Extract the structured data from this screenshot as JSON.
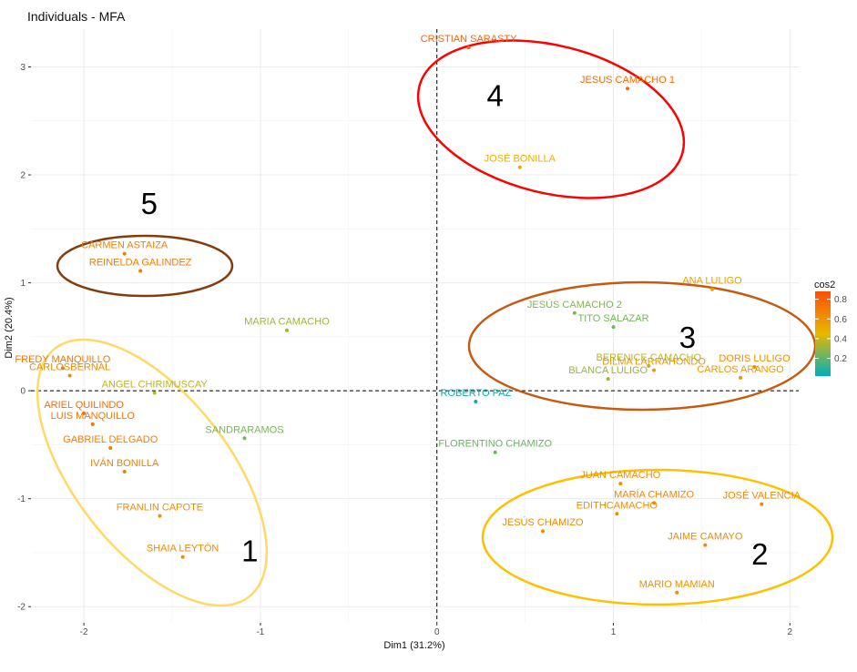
{
  "chart_data": {
    "type": "scatter",
    "title": "Individuals - MFA",
    "xlabel": "Dim1 (31.2%)",
    "ylabel": "Dim2 (20.4%)",
    "xlim": [
      -2.3,
      2.05
    ],
    "ylim": [
      -2.15,
      3.35
    ],
    "xticks": [
      -2,
      -1,
      0,
      1,
      2
    ],
    "yticks": [
      -2,
      -1,
      0,
      1,
      2,
      3
    ],
    "grid": true,
    "legend": {
      "title": "cos2",
      "position": "right",
      "ticks": [
        0.8,
        0.6,
        0.4,
        0.2
      ],
      "range": [
        0.02,
        0.88
      ]
    },
    "colors": {
      "low": "#00AFBB",
      "mid": "#E7B800",
      "high": "#FC4E07"
    },
    "points": [
      {
        "label": "CRISTIAN SARASTY",
        "x": 0.18,
        "y": 3.18,
        "cos2": 0.8
      },
      {
        "label": "JESUS CAMACHO 1",
        "x": 1.08,
        "y": 2.8,
        "cos2": 0.76
      },
      {
        "label": "JOSÉ BONILLA",
        "x": 0.47,
        "y": 2.07,
        "cos2": 0.5
      },
      {
        "label": "CARMEN ASTAIZA",
        "x": -1.77,
        "y": 1.27,
        "cos2": 0.68
      },
      {
        "label": "REINELDA GALINDEZ",
        "x": -1.68,
        "y": 1.11,
        "cos2": 0.7
      },
      {
        "label": "MARIA CAMACHO",
        "x": -0.85,
        "y": 0.56,
        "cos2": 0.32
      },
      {
        "label": "FREDY MANQUILLO",
        "x": -2.12,
        "y": 0.21,
        "cos2": 0.72
      },
      {
        "label": "CARLOSBERNAL",
        "x": -2.08,
        "y": 0.14,
        "cos2": 0.64
      },
      {
        "label": "ANGEL CHIRIMUSCAY",
        "x": -1.6,
        "y": -0.02,
        "cos2": 0.36
      },
      {
        "label": "ARIEL QUILINDO",
        "x": -2.0,
        "y": -0.21,
        "cos2": 0.76
      },
      {
        "label": "LUIS MANQUILLO",
        "x": -1.95,
        "y": -0.31,
        "cos2": 0.72
      },
      {
        "label": "SANDRARAMOS",
        "x": -1.09,
        "y": -0.44,
        "cos2": 0.24
      },
      {
        "label": "GABRIEL DELGADO",
        "x": -1.85,
        "y": -0.53,
        "cos2": 0.68
      },
      {
        "label": "IVÁN BONILLA",
        "x": -1.77,
        "y": -0.75,
        "cos2": 0.68
      },
      {
        "label": "FRANLIN CAPOTE",
        "x": -1.57,
        "y": -1.16,
        "cos2": 0.62
      },
      {
        "label": "SHAIA LEYTÓN",
        "x": -1.44,
        "y": -1.54,
        "cos2": 0.64
      },
      {
        "label": "JESÚS CAMACHO 2",
        "x": 0.78,
        "y": 0.72,
        "cos2": 0.26
      },
      {
        "label": "ANA LULIGO",
        "x": 1.56,
        "y": 0.94,
        "cos2": 0.56
      },
      {
        "label": "TITO SALAZAR",
        "x": 1.0,
        "y": 0.59,
        "cos2": 0.24
      },
      {
        "label": "DORIS LULIGO",
        "x": 1.8,
        "y": 0.22,
        "cos2": 0.62
      },
      {
        "label": "BERENICE CAMACHO",
        "x": 1.2,
        "y": 0.23,
        "cos2": 0.36
      },
      {
        "label": "DILMA LARRAHONDO",
        "x": 1.23,
        "y": 0.19,
        "cos2": 0.58
      },
      {
        "label": "BLANCA LULIGO",
        "x": 0.97,
        "y": 0.11,
        "cos2": 0.3
      },
      {
        "label": "CARLOS ARANGO",
        "x": 1.72,
        "y": 0.12,
        "cos2": 0.58
      },
      {
        "label": "ROBERTO PAZ",
        "x": 0.22,
        "y": -0.1,
        "cos2": 0.04
      },
      {
        "label": "FLORENTINO CHAMIZO",
        "x": 0.33,
        "y": -0.57,
        "cos2": 0.22
      },
      {
        "label": "JUAN CAMACHO",
        "x": 1.04,
        "y": -0.86,
        "cos2": 0.62
      },
      {
        "label": "MARÍA CHAMIZO",
        "x": 1.23,
        "y": -1.04,
        "cos2": 0.66
      },
      {
        "label": "JOSÉ VALENCIA",
        "x": 1.84,
        "y": -1.05,
        "cos2": 0.64
      },
      {
        "label": "EDITHCAMACHO",
        "x": 1.02,
        "y": -1.14,
        "cos2": 0.62
      },
      {
        "label": "JESÚS CHAMIZO",
        "x": 0.6,
        "y": -1.3,
        "cos2": 0.64
      },
      {
        "label": "JAIME CAMAYO",
        "x": 1.52,
        "y": -1.43,
        "cos2": 0.64
      },
      {
        "label": "MARIO MAMIAN",
        "x": 1.36,
        "y": -1.87,
        "cos2": 0.62
      }
    ],
    "annotations": [
      {
        "label": "1",
        "x": -1.06,
        "y": -1.48
      },
      {
        "label": "2",
        "x": 1.83,
        "y": -1.51
      },
      {
        "label": "3",
        "x": 1.42,
        "y": 0.5
      },
      {
        "label": "4",
        "x": 0.33,
        "y": 2.74
      },
      {
        "label": "5",
        "x": -1.63,
        "y": 1.74
      }
    ],
    "ellipses": [
      {
        "name": "cluster-1",
        "color": "#FFD966"
      },
      {
        "name": "cluster-2",
        "color": "#FFC000"
      },
      {
        "name": "cluster-3",
        "color": "#C55A11"
      },
      {
        "name": "cluster-4",
        "color": "#FF0000"
      },
      {
        "name": "cluster-5",
        "color": "#843C0C"
      }
    ]
  }
}
